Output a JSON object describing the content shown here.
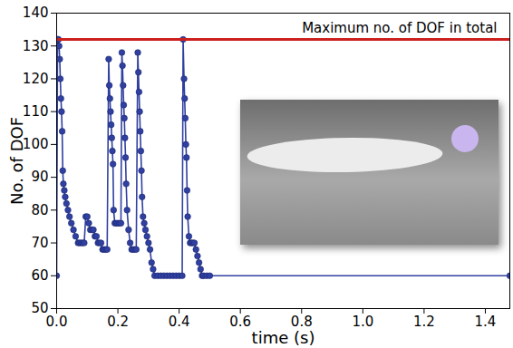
{
  "chart_data": {
    "type": "line",
    "x_label": "time (s)",
    "y_label": "No. of DOF",
    "xlim": [
      0,
      1.48
    ],
    "ylim": [
      50,
      140
    ],
    "xticks": [
      {
        "value": 0,
        "label": "0.0"
      },
      0.2,
      0.4,
      0.6,
      0.8,
      {
        "value": 1,
        "label": "1.0"
      },
      1.2,
      1.4
    ],
    "yticks": [
      50,
      60,
      70,
      80,
      90,
      100,
      110,
      120,
      130,
      140
    ],
    "grid": false,
    "series": [
      {
        "color": "#3040a0",
        "marker": "circle",
        "line_style": "solid",
        "x": [
          0,
          0.003,
          0.006,
          0.008,
          0.01,
          0.012,
          0.014,
          0.016,
          0.018,
          0.02,
          0.022,
          0.025,
          0.028,
          0.032,
          0.037,
          0.042,
          0.048,
          0.055,
          0.062,
          0.07,
          0.075,
          0.08,
          0.085,
          0.09,
          0.095,
          0.1,
          0.105,
          0.11,
          0.115,
          0.12,
          0.125,
          0.13,
          0.135,
          0.14,
          0.145,
          0.15,
          0.155,
          0.16,
          0.165,
          0.17,
          0.172,
          0.174,
          0.176,
          0.178,
          0.18,
          0.182,
          0.184,
          0.186,
          0.19,
          0.195,
          0.2,
          0.205,
          0.21,
          0.213,
          0.215,
          0.217,
          0.219,
          0.221,
          0.223,
          0.225,
          0.227,
          0.23,
          0.235,
          0.24,
          0.245,
          0.25,
          0.255,
          0.26,
          0.265,
          0.267,
          0.269,
          0.271,
          0.273,
          0.275,
          0.277,
          0.279,
          0.282,
          0.286,
          0.29,
          0.295,
          0.3,
          0.305,
          0.31,
          0.315,
          0.32,
          0.33,
          0.34,
          0.35,
          0.36,
          0.37,
          0.38,
          0.39,
          0.4,
          0.41,
          0.413,
          0.416,
          0.418,
          0.42,
          0.422,
          0.424,
          0.426,
          0.428,
          0.432,
          0.436,
          0.44,
          0.445,
          0.45,
          0.455,
          0.46,
          0.465,
          0.47,
          0.475,
          0.48,
          0.49,
          0.5,
          1.48
        ],
        "values": [
          60,
          132,
          132,
          130,
          126,
          120,
          114,
          110,
          104,
          92,
          88,
          86,
          84,
          82,
          80,
          78,
          76,
          74,
          72,
          70,
          70,
          70,
          70,
          70,
          78,
          78,
          76,
          74,
          74,
          74,
          72,
          72,
          70,
          70,
          70,
          68,
          68,
          68,
          68,
          126,
          118,
          114,
          110,
          106,
          102,
          98,
          94,
          80,
          76,
          76,
          76,
          76,
          76,
          128,
          124,
          118,
          112,
          108,
          102,
          96,
          88,
          80,
          74,
          70,
          68,
          68,
          68,
          68,
          128,
          122,
          116,
          110,
          104,
          98,
          92,
          84,
          78,
          76,
          74,
          72,
          70,
          68,
          64,
          62,
          60,
          60,
          60,
          60,
          60,
          60,
          60,
          60,
          60,
          60,
          132,
          120,
          114,
          108,
          100,
          96,
          86,
          78,
          72,
          70,
          70,
          70,
          70,
          68,
          66,
          64,
          62,
          60,
          60,
          60,
          60,
          60
        ]
      },
      {
        "name": "Maximum no. of DOF in total",
        "color": "#cc2020",
        "line_style": "solid",
        "x": [
          0,
          1.48
        ],
        "values": [
          132,
          132
        ]
      }
    ]
  }
}
